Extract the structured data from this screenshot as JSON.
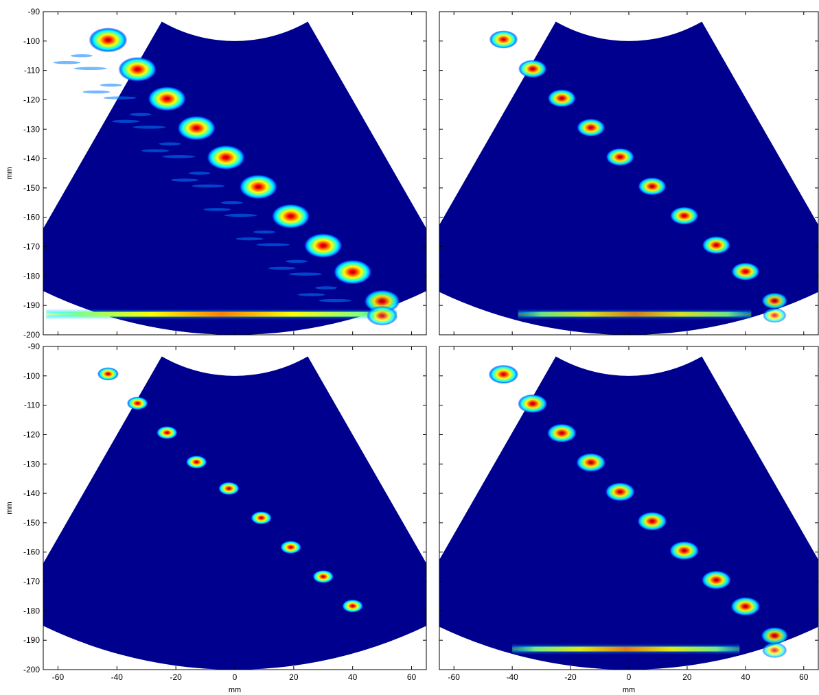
{
  "figure": {
    "background": "#ffffff",
    "colormap_background": "#00008f",
    "colormap": [
      "#00008f",
      "#0000ff",
      "#0080ff",
      "#00ffff",
      "#80ff80",
      "#ffff00",
      "#ff8000",
      "#ff0000",
      "#8f0000"
    ]
  },
  "chart_data": [
    {
      "type": "heatmap",
      "panel": "top-left",
      "title": "",
      "xlabel": "",
      "ylabel": "mm",
      "xlim": [
        -65,
        65
      ],
      "ylim": [
        -200,
        -90
      ],
      "xticks": [
        -60,
        -40,
        -20,
        0,
        20,
        40,
        60
      ],
      "xtick_labels_shown": false,
      "yticks": [
        -90,
        -100,
        -110,
        -120,
        -130,
        -140,
        -150,
        -160,
        -170,
        -180,
        -190,
        -200
      ],
      "ytick_labels_shown": true,
      "point_targets": [
        {
          "x": -43,
          "y": -99,
          "intensity": 1.0,
          "spread": 1.0
        },
        {
          "x": -33,
          "y": -109,
          "intensity": 1.0,
          "spread": 1.0
        },
        {
          "x": -23,
          "y": -119,
          "intensity": 1.0,
          "spread": 1.0
        },
        {
          "x": -13,
          "y": -129,
          "intensity": 1.0,
          "spread": 1.0
        },
        {
          "x": -3,
          "y": -139,
          "intensity": 1.0,
          "spread": 1.0
        },
        {
          "x": 8,
          "y": -149,
          "intensity": 1.0,
          "spread": 1.0
        },
        {
          "x": 19,
          "y": -159,
          "intensity": 1.0,
          "spread": 1.0
        },
        {
          "x": 30,
          "y": -169,
          "intensity": 1.0,
          "spread": 1.0
        },
        {
          "x": 40,
          "y": -178,
          "intensity": 1.0,
          "spread": 1.0
        },
        {
          "x": 50,
          "y": -188,
          "intensity": 0.9,
          "spread": 0.9
        },
        {
          "x": 50,
          "y": -193,
          "intensity": 0.8,
          "spread": 0.7
        }
      ],
      "bright_line": {
        "y": -193,
        "x_start": -64,
        "x_end": 55,
        "intensity": 1.0
      },
      "clutter": true
    },
    {
      "type": "heatmap",
      "panel": "top-right",
      "title": "",
      "xlabel": "",
      "ylabel": "",
      "xlim": [
        -65,
        65
      ],
      "ylim": [
        -200,
        -90
      ],
      "xticks": [
        -60,
        -40,
        -20,
        0,
        20,
        40,
        60
      ],
      "xtick_labels_shown": false,
      "yticks": [
        -90,
        -100,
        -110,
        -120,
        -130,
        -140,
        -150,
        -160,
        -170,
        -180,
        -190,
        -200
      ],
      "ytick_labels_shown": false,
      "point_targets": [
        {
          "x": -43,
          "y": -99,
          "intensity": 0.95,
          "spread": 0.6
        },
        {
          "x": -33,
          "y": -109,
          "intensity": 0.95,
          "spread": 0.6
        },
        {
          "x": -23,
          "y": -119,
          "intensity": 0.95,
          "spread": 0.6
        },
        {
          "x": -13,
          "y": -129,
          "intensity": 0.95,
          "spread": 0.6
        },
        {
          "x": -3,
          "y": -139,
          "intensity": 0.95,
          "spread": 0.6
        },
        {
          "x": 8,
          "y": -149,
          "intensity": 0.95,
          "spread": 0.6
        },
        {
          "x": 19,
          "y": -159,
          "intensity": 0.95,
          "spread": 0.6
        },
        {
          "x": 30,
          "y": -169,
          "intensity": 0.95,
          "spread": 0.6
        },
        {
          "x": 40,
          "y": -178,
          "intensity": 0.95,
          "spread": 0.6
        },
        {
          "x": 50,
          "y": -188,
          "intensity": 0.85,
          "spread": 0.5
        },
        {
          "x": 50,
          "y": -193,
          "intensity": 0.7,
          "spread": 0.4
        }
      ],
      "bright_line": {
        "y": -193,
        "x_start": -38,
        "x_end": 42,
        "intensity": 0.8
      },
      "clutter": false
    },
    {
      "type": "heatmap",
      "panel": "bottom-left",
      "title": "",
      "xlabel": "mm",
      "ylabel": "mm",
      "xlim": [
        -65,
        65
      ],
      "ylim": [
        -200,
        -90
      ],
      "xticks": [
        -60,
        -40,
        -20,
        0,
        20,
        40,
        60
      ],
      "xtick_labels_shown": true,
      "yticks": [
        -90,
        -100,
        -110,
        -120,
        -130,
        -140,
        -150,
        -160,
        -170,
        -180,
        -190,
        -200
      ],
      "ytick_labels_shown": true,
      "point_targets": [
        {
          "x": -43,
          "y": -99,
          "intensity": 1.0,
          "spread": 0.3
        },
        {
          "x": -33,
          "y": -109,
          "intensity": 1.0,
          "spread": 0.3
        },
        {
          "x": -23,
          "y": -119,
          "intensity": 1.0,
          "spread": 0.3
        },
        {
          "x": -13,
          "y": -129,
          "intensity": 1.0,
          "spread": 0.3
        },
        {
          "x": -2,
          "y": -138,
          "intensity": 1.0,
          "spread": 0.3
        },
        {
          "x": 9,
          "y": -148,
          "intensity": 1.0,
          "spread": 0.3
        },
        {
          "x": 19,
          "y": -158,
          "intensity": 1.0,
          "spread": 0.3
        },
        {
          "x": 30,
          "y": -168,
          "intensity": 1.0,
          "spread": 0.3
        },
        {
          "x": 40,
          "y": -178,
          "intensity": 1.0,
          "spread": 0.3
        }
      ],
      "bright_line": null,
      "clutter": false
    },
    {
      "type": "heatmap",
      "panel": "bottom-right",
      "title": "",
      "xlabel": "mm",
      "ylabel": "",
      "xlim": [
        -65,
        65
      ],
      "ylim": [
        -200,
        -90
      ],
      "xticks": [
        -60,
        -40,
        -20,
        0,
        20,
        40,
        60
      ],
      "xtick_labels_shown": true,
      "yticks": [
        -90,
        -100,
        -110,
        -120,
        -130,
        -140,
        -150,
        -160,
        -170,
        -180,
        -190,
        -200
      ],
      "ytick_labels_shown": false,
      "point_targets": [
        {
          "x": -43,
          "y": -99,
          "intensity": 0.95,
          "spread": 0.65
        },
        {
          "x": -33,
          "y": -109,
          "intensity": 0.95,
          "spread": 0.65
        },
        {
          "x": -23,
          "y": -119,
          "intensity": 0.95,
          "spread": 0.65
        },
        {
          "x": -13,
          "y": -129,
          "intensity": 0.95,
          "spread": 0.65
        },
        {
          "x": -3,
          "y": -139,
          "intensity": 0.95,
          "spread": 0.65
        },
        {
          "x": 8,
          "y": -149,
          "intensity": 0.95,
          "spread": 0.65
        },
        {
          "x": 19,
          "y": -159,
          "intensity": 0.95,
          "spread": 0.65
        },
        {
          "x": 30,
          "y": -169,
          "intensity": 0.95,
          "spread": 0.65
        },
        {
          "x": 40,
          "y": -178,
          "intensity": 0.95,
          "spread": 0.65
        },
        {
          "x": 50,
          "y": -188,
          "intensity": 0.85,
          "spread": 0.55
        },
        {
          "x": 50,
          "y": -193,
          "intensity": 0.7,
          "spread": 0.45
        }
      ],
      "bright_line": {
        "y": -193,
        "x_start": -40,
        "x_end": 38,
        "intensity": 0.85
      },
      "clutter": false
    }
  ]
}
